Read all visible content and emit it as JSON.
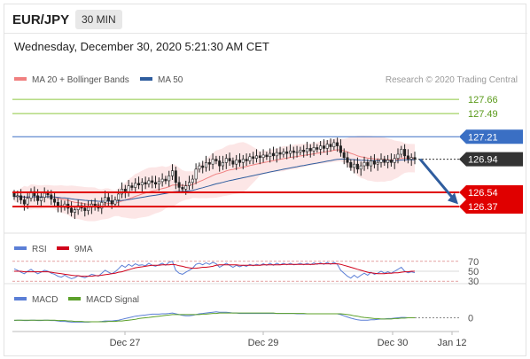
{
  "header": {
    "symbol": "EUR/JPY",
    "timeframe": "30 MIN"
  },
  "timestamp": "Wednesday, December 30, 2020 5:21:30 AM CET",
  "legends": {
    "main": [
      {
        "label": "MA 20 + Bollinger Bands",
        "color": "#f08080"
      },
      {
        "label": "MA 50",
        "color": "#2f5d9e"
      }
    ],
    "copyright": "Research © 2020 Trading Central",
    "rsi": [
      {
        "label": "RSI",
        "color": "#5b7fd6"
      },
      {
        "label": "9MA",
        "color": "#d0021b"
      }
    ],
    "macd": [
      {
        "label": "MACD",
        "color": "#5b7fd6"
      },
      {
        "label": "MACD Signal",
        "color": "#5ca02a"
      }
    ]
  },
  "chart_data": [
    {
      "type": "candlestick",
      "title": "EUR/JPY",
      "ylim": [
        126.06,
        127.79
      ],
      "levels": [
        {
          "value": 127.66,
          "label": "127.66",
          "color": "#8cc63f",
          "kind": "resistance"
        },
        {
          "value": 127.49,
          "label": "127.49",
          "color": "#8cc63f",
          "kind": "resistance"
        },
        {
          "value": 127.21,
          "label": "127.21",
          "color": "#3a6fc4",
          "kind": "pivot"
        },
        {
          "value": 126.54,
          "label": "126.54",
          "color": "#e00000",
          "kind": "support"
        },
        {
          "value": 126.37,
          "label": "126.37",
          "color": "#e00000",
          "kind": "support"
        }
      ],
      "last_price": {
        "value": 126.94,
        "label": "126.94"
      },
      "close": [
        126.49,
        126.5,
        126.45,
        126.4,
        126.47,
        126.55,
        126.5,
        126.44,
        126.48,
        126.53,
        126.51,
        126.46,
        126.42,
        126.38,
        126.36,
        126.4,
        126.35,
        126.3,
        126.33,
        126.38,
        126.35,
        126.32,
        126.36,
        126.4,
        126.38,
        126.35,
        126.42,
        126.48,
        126.44,
        126.4,
        126.45,
        126.52,
        126.58,
        126.55,
        126.62,
        126.6,
        126.65,
        126.63,
        126.66,
        126.64,
        126.68,
        126.66,
        126.64,
        126.67,
        126.7,
        126.68,
        126.74,
        126.8,
        126.66,
        126.6,
        126.58,
        126.62,
        126.66,
        126.7,
        126.82,
        126.86,
        126.84,
        126.9,
        126.88,
        126.94,
        126.92,
        126.86,
        126.9,
        126.95,
        126.92,
        126.88,
        126.93,
        126.9,
        126.94,
        126.92,
        126.97,
        126.95,
        126.98,
        126.96,
        126.99,
        126.97,
        127.01,
        126.98,
        127.02,
        127.0,
        127.03,
        127.01,
        127.04,
        127.02,
        127.03,
        127.05,
        127.03,
        127.07,
        127.04,
        127.08,
        127.06,
        127.1,
        127.07,
        127.12,
        127.09,
        127.14,
        127.1,
        127.02,
        126.96,
        126.9,
        126.84,
        126.88,
        126.82,
        126.86,
        126.9,
        126.86,
        126.92,
        126.88,
        126.9,
        126.94,
        126.9,
        126.93,
        126.9,
        126.95,
        127.0,
        127.06,
        126.98,
        126.94,
        126.96,
        126.94
      ]
    },
    {
      "type": "line",
      "title": "RSI",
      "yticks": [
        70,
        50,
        30
      ],
      "ylim": [
        25,
        75
      ],
      "series": [
        {
          "name": "RSI",
          "values": [
            55,
            52,
            48,
            45,
            50,
            54,
            49,
            45,
            48,
            52,
            50,
            46,
            44,
            40,
            38,
            42,
            38,
            35,
            37,
            41,
            39,
            37,
            40,
            44,
            42,
            40,
            46,
            52,
            48,
            45,
            49,
            55,
            62,
            58,
            64,
            60,
            65,
            62,
            63,
            61,
            66,
            62,
            60,
            63,
            66,
            62,
            68,
            70,
            52,
            46,
            44,
            48,
            52,
            56,
            64,
            66,
            63,
            67,
            64,
            68,
            65,
            58,
            62,
            66,
            62,
            58,
            62,
            59,
            62,
            60,
            64,
            61,
            64,
            62,
            65,
            62,
            66,
            62,
            66,
            63,
            66,
            63,
            66,
            63,
            64,
            66,
            63,
            66,
            63,
            67,
            64,
            67,
            64,
            68,
            64,
            68,
            64,
            52,
            46,
            40,
            36,
            42,
            37,
            42,
            46,
            42,
            48,
            44,
            46,
            50,
            46,
            49,
            46,
            50,
            54,
            58,
            50,
            47,
            49,
            47
          ]
        },
        {
          "name": "9MA",
          "values": [
            50,
            50,
            50,
            49,
            49,
            49,
            49,
            49,
            49,
            49,
            49,
            48,
            47,
            46,
            45,
            44,
            43,
            42,
            41,
            41,
            40,
            40,
            40,
            40,
            41,
            41,
            42,
            43,
            44,
            45,
            46,
            48,
            49,
            51,
            53,
            55,
            57,
            58,
            59,
            60,
            61,
            62,
            62,
            62,
            63,
            63,
            63,
            64,
            63,
            61,
            60,
            58,
            57,
            56,
            56,
            57,
            58,
            58,
            59,
            60,
            62,
            63,
            63,
            63,
            63,
            63,
            63,
            62,
            62,
            62,
            62,
            62,
            62,
            62,
            63,
            63,
            63,
            63,
            63,
            63,
            64,
            64,
            64,
            64,
            64,
            64,
            64,
            64,
            64,
            64,
            65,
            65,
            65,
            65,
            65,
            65,
            65,
            64,
            62,
            60,
            58,
            56,
            54,
            52,
            50,
            48,
            47,
            46,
            45,
            45,
            45,
            46,
            46,
            47,
            47,
            48,
            49,
            49,
            50,
            50
          ]
        }
      ]
    },
    {
      "type": "line",
      "title": "MACD",
      "yticks": [
        0
      ],
      "ylim": [
        -0.3,
        0.3
      ],
      "series": [
        {
          "name": "MACD",
          "values": [
            -0.07,
            -0.06,
            -0.06,
            -0.07,
            -0.07,
            -0.06,
            -0.06,
            -0.07,
            -0.07,
            -0.06,
            -0.06,
            -0.07,
            -0.07,
            -0.08,
            -0.09,
            -0.09,
            -0.1,
            -0.11,
            -0.11,
            -0.11,
            -0.11,
            -0.11,
            -0.11,
            -0.1,
            -0.1,
            -0.1,
            -0.09,
            -0.08,
            -0.08,
            -0.08,
            -0.07,
            -0.06,
            -0.04,
            -0.02,
            0,
            0.02,
            0.04,
            0.05,
            0.06,
            0.07,
            0.08,
            0.09,
            0.09,
            0.09,
            0.1,
            0.1,
            0.11,
            0.12,
            0.1,
            0.08,
            0.06,
            0.05,
            0.05,
            0.06,
            0.08,
            0.1,
            0.11,
            0.12,
            0.13,
            0.14,
            0.15,
            0.14,
            0.14,
            0.14,
            0.13,
            0.12,
            0.12,
            0.11,
            0.11,
            0.11,
            0.11,
            0.11,
            0.11,
            0.11,
            0.11,
            0.11,
            0.11,
            0.11,
            0.11,
            0.11,
            0.11,
            0.11,
            0.11,
            0.11,
            0.1,
            0.1,
            0.1,
            0.1,
            0.1,
            0.1,
            0.1,
            0.1,
            0.1,
            0.1,
            0.1,
            0.1,
            0.1,
            0.08,
            0.05,
            0.02,
            -0.01,
            -0.03,
            -0.05,
            -0.06,
            -0.06,
            -0.06,
            -0.05,
            -0.05,
            -0.04,
            -0.03,
            -0.03,
            -0.02,
            -0.02,
            -0.01,
            0,
            0.01,
            0.01,
            0,
            0,
            0
          ]
        },
        {
          "name": "MACD Signal",
          "values": [
            -0.06,
            -0.06,
            -0.06,
            -0.06,
            -0.06,
            -0.06,
            -0.06,
            -0.06,
            -0.06,
            -0.06,
            -0.06,
            -0.06,
            -0.06,
            -0.07,
            -0.07,
            -0.07,
            -0.08,
            -0.08,
            -0.09,
            -0.09,
            -0.09,
            -0.1,
            -0.1,
            -0.1,
            -0.1,
            -0.1,
            -0.1,
            -0.1,
            -0.09,
            -0.09,
            -0.09,
            -0.08,
            -0.08,
            -0.07,
            -0.06,
            -0.05,
            -0.04,
            -0.02,
            -0.01,
            0,
            0.01,
            0.02,
            0.03,
            0.04,
            0.05,
            0.06,
            0.07,
            0.08,
            0.08,
            0.08,
            0.08,
            0.08,
            0.08,
            0.08,
            0.08,
            0.08,
            0.09,
            0.09,
            0.1,
            0.11,
            0.11,
            0.12,
            0.12,
            0.12,
            0.12,
            0.12,
            0.12,
            0.12,
            0.12,
            0.12,
            0.12,
            0.12,
            0.12,
            0.12,
            0.12,
            0.12,
            0.12,
            0.12,
            0.11,
            0.11,
            0.11,
            0.11,
            0.11,
            0.11,
            0.11,
            0.11,
            0.11,
            0.1,
            0.1,
            0.1,
            0.1,
            0.1,
            0.1,
            0.1,
            0.1,
            0.1,
            0.1,
            0.1,
            0.09,
            0.08,
            0.07,
            0.05,
            0.04,
            0.02,
            0.01,
            0,
            -0.01,
            -0.02,
            -0.02,
            -0.03,
            -0.03,
            -0.03,
            -0.03,
            -0.02,
            -0.02,
            -0.01,
            -0.01,
            0,
            0,
            0
          ]
        }
      ]
    }
  ],
  "xaxis": {
    "labels": [
      "Dec 27",
      "Dec 29",
      "Dec 30",
      "Jan 12"
    ]
  }
}
